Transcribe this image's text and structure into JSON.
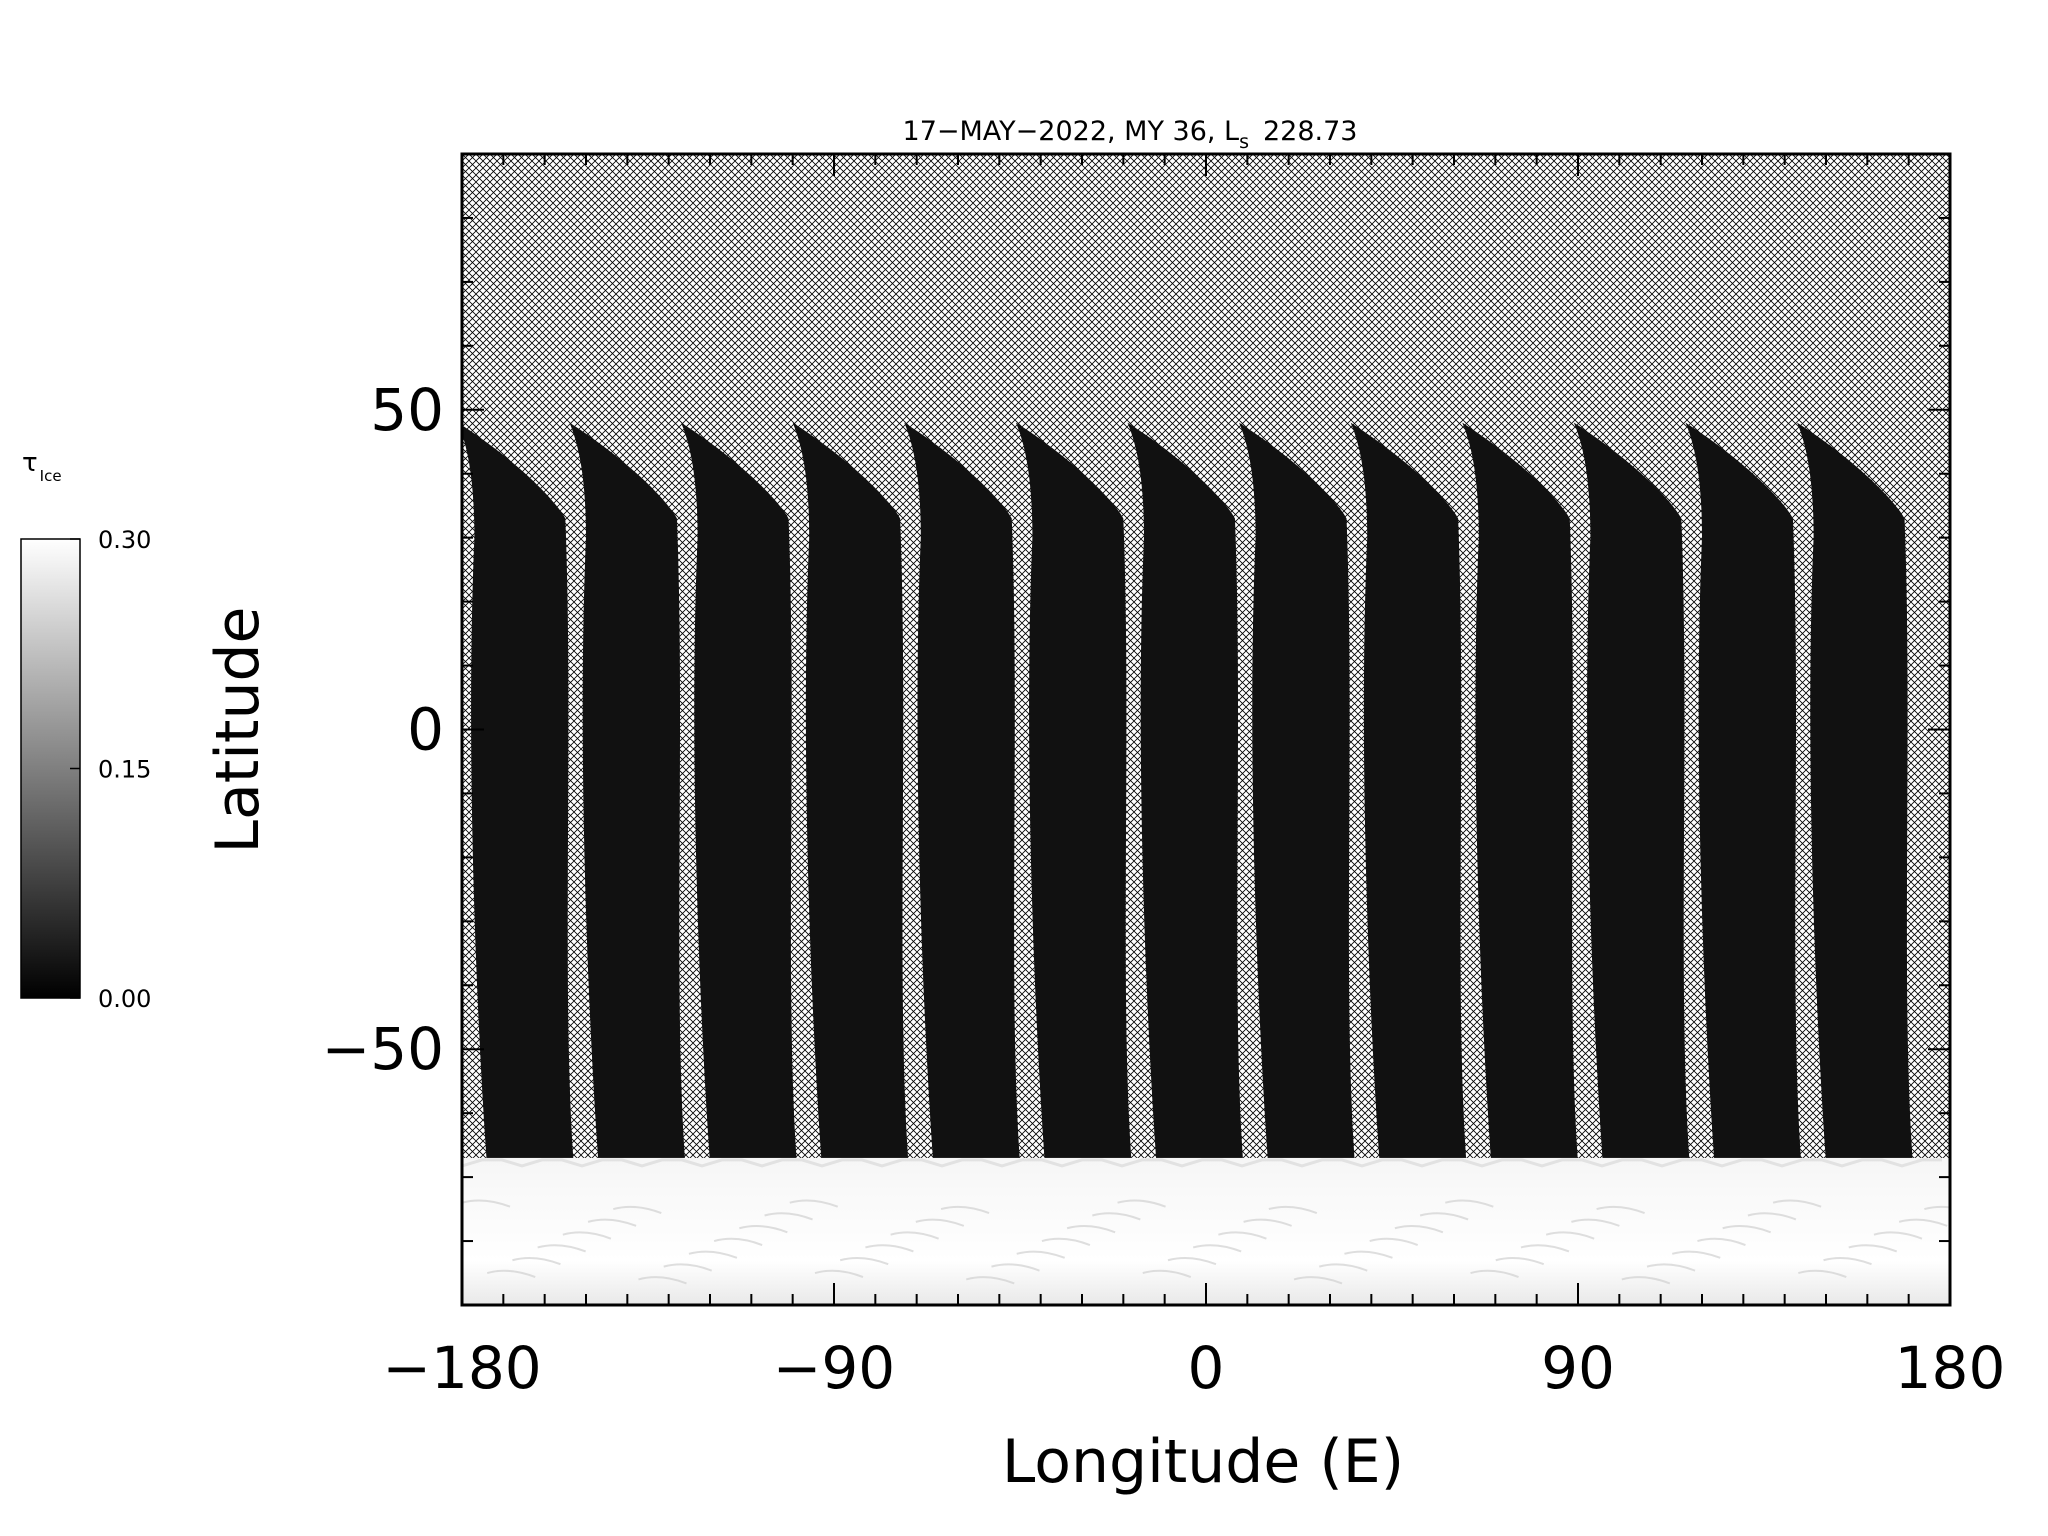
{
  "chart_data": {
    "type": "heatmap",
    "title": "17−MAY−2022, MY 36,  L",
    "title_subscript": "s",
    "title_value": "228.73",
    "xlabel": "Longitude (E)",
    "ylabel": "Latitude",
    "xlim": [
      -180,
      180
    ],
    "ylim": [
      -90,
      90
    ],
    "xticks": [
      -180,
      -90,
      0,
      90,
      180
    ],
    "xtick_labels": [
      "−180",
      "−90",
      "0",
      "90",
      "180"
    ],
    "yticks": [
      -50,
      0,
      50
    ],
    "ytick_labels": [
      "−50",
      "0",
      "50"
    ],
    "x_minor_step": 10,
    "y_minor_step": 10,
    "colorscale": "grayscale",
    "no_data_fill": "crosshatch",
    "colorbar": {
      "label": "τ",
      "label_subscript": "Ice",
      "range": [
        0.0,
        0.3
      ],
      "ticks": [
        0.0,
        0.15,
        0.3
      ],
      "tick_labels": [
        "0.00",
        "0.15",
        "0.30"
      ]
    },
    "swaths": {
      "count": 13,
      "first_center_longitude": -169,
      "spacing_longitude": 27,
      "top_latitude": 48,
      "bottom_latitude": -67,
      "tau_ice": 0.02
    },
    "polar_hood": {
      "lat_range": [
        -90,
        -67
      ],
      "tau_ice": 0.3
    }
  }
}
